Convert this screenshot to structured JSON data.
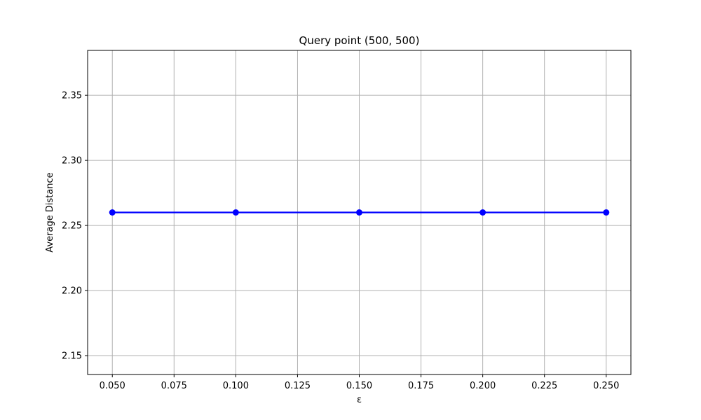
{
  "chart_data": {
    "type": "line",
    "title": "Query point (500, 500)",
    "xlabel": "ε",
    "ylabel": "Average Distance",
    "x": [
      0.05,
      0.1,
      0.15,
      0.2,
      0.25
    ],
    "series": [
      {
        "values": [
          2.26,
          2.26,
          2.26,
          2.26,
          2.26
        ],
        "color": "#0000ff",
        "marker": "circle"
      }
    ],
    "xlim": [
      0.04,
      0.26
    ],
    "ylim": [
      2.1355,
      2.3845
    ],
    "xticks": [
      "0.050",
      "0.075",
      "0.100",
      "0.125",
      "0.150",
      "0.175",
      "0.200",
      "0.225",
      "0.250"
    ],
    "yticks": [
      "2.15",
      "2.20",
      "2.25",
      "2.30",
      "2.35"
    ],
    "grid": true,
    "colors": {
      "grid": "#b0b0b0",
      "axes": "#000000",
      "line": "#0000ff"
    }
  }
}
